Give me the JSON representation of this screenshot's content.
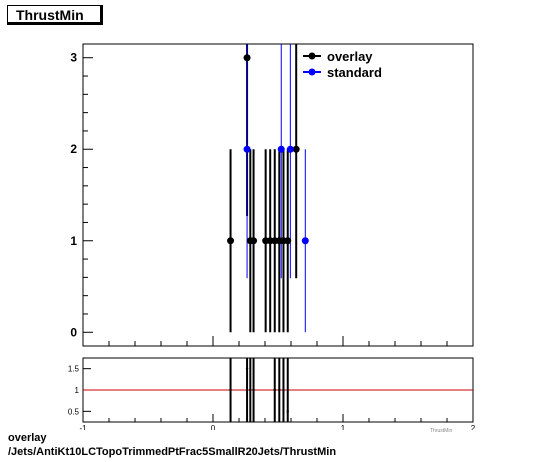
{
  "title": "ThrustMin",
  "footer": {
    "line1": "overlay",
    "line2": "/Jets/AntiKt10LCTopoTrimmedPtFrac5SmallR20Jets/ThrustMin"
  },
  "xaxis_label": "ThrustMin",
  "chart_data": [
    {
      "type": "scatter",
      "title": "ThrustMin",
      "xlim": [
        -1,
        2
      ],
      "ylim": [
        -0.15,
        3.15
      ],
      "yticks": [
        0,
        1,
        2,
        3
      ],
      "series": [
        {
          "name": "overlay",
          "color": "#000000",
          "points": [
            {
              "x": 0.135,
              "y": 1,
              "err": 1
            },
            {
              "x": 0.262,
              "y": 3,
              "err": 1.73
            },
            {
              "x": 0.287,
              "y": 1,
              "err": 1
            },
            {
              "x": 0.312,
              "y": 1,
              "err": 1
            },
            {
              "x": 0.405,
              "y": 1,
              "err": 1
            },
            {
              "x": 0.44,
              "y": 1,
              "err": 1
            },
            {
              "x": 0.475,
              "y": 1,
              "err": 1
            },
            {
              "x": 0.51,
              "y": 1,
              "err": 1
            },
            {
              "x": 0.542,
              "y": 1,
              "err": 1
            },
            {
              "x": 0.575,
              "y": 1,
              "err": 1
            },
            {
              "x": 0.64,
              "y": 2,
              "err": 1.41
            }
          ]
        },
        {
          "name": "standard",
          "color": "#0000ff",
          "points": [
            {
              "x": 0.262,
              "y": 2,
              "err": 1.41
            },
            {
              "x": 0.525,
              "y": 2,
              "err": 1.41
            },
            {
              "x": 0.595,
              "y": 2,
              "err": 1.41
            },
            {
              "x": 0.71,
              "y": 1,
              "err": 1
            }
          ]
        }
      ],
      "legend": {
        "position": "top-right",
        "entries": [
          "overlay",
          "standard"
        ]
      }
    },
    {
      "type": "scatter",
      "title": "",
      "xlim": [
        -1,
        2
      ],
      "ylim": [
        0.25,
        1.75
      ],
      "yticks": [
        0.5,
        1,
        1.5
      ],
      "xticks": [
        -1,
        0,
        1,
        2
      ],
      "reference_line": {
        "y": 1,
        "color": "#cc0000"
      },
      "series": [
        {
          "name": "ratio",
          "color": "#000000",
          "points": [
            {
              "x": 0.135,
              "y": 1,
              "err": 1.4
            },
            {
              "x": 0.262,
              "y": 1.5,
              "err": 1.4
            },
            {
              "x": 0.287,
              "y": 1,
              "err": 1.4
            },
            {
              "x": 0.312,
              "y": 1,
              "err": 1.4
            },
            {
              "x": 0.475,
              "y": 1,
              "err": 1.4
            },
            {
              "x": 0.51,
              "y": 1,
              "err": 1.4
            },
            {
              "x": 0.542,
              "y": 1,
              "err": 1.4
            },
            {
              "x": 0.575,
              "y": 0.5,
              "err": 1.4
            }
          ]
        }
      ]
    }
  ]
}
